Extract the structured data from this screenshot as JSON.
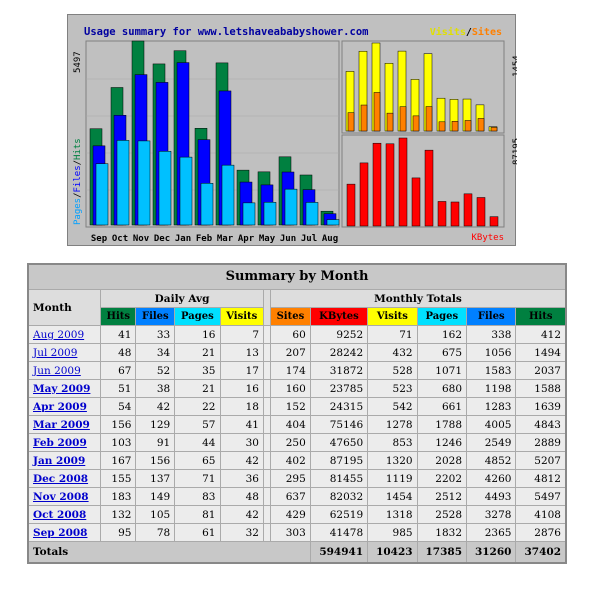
{
  "chart": {
    "title": "Usage summary for www.letshaveababyshower.com",
    "legend_left": [
      "Pages",
      "Files",
      "Hits"
    ],
    "legend_top_right": [
      "Visits",
      "Sites"
    ],
    "legend_bottom_right": "KBytes",
    "left_axis_max": "5497",
    "right_top_max": "1454",
    "right_bottom_max": "87195",
    "colors": {
      "hits": "#008040",
      "files": "#0000ff",
      "pages": "#00c0ff",
      "visits": "#ffff00",
      "sites": "#ff8000",
      "kbytes": "#ff0000",
      "title": "#0000a0"
    }
  },
  "chart_data": {
    "type": "bar",
    "categories": [
      "Sep",
      "Oct",
      "Nov",
      "Dec",
      "Jan",
      "Feb",
      "Mar",
      "Apr",
      "May",
      "Jun",
      "Jul",
      "Aug"
    ],
    "series": [
      {
        "name": "Hits",
        "values": [
          2876,
          4108,
          5497,
          4812,
          5207,
          2889,
          4843,
          1639,
          1588,
          2037,
          1494,
          412
        ]
      },
      {
        "name": "Files",
        "values": [
          2365,
          3278,
          4493,
          4260,
          4852,
          2549,
          4005,
          1283,
          1198,
          1583,
          1056,
          338
        ]
      },
      {
        "name": "Pages",
        "values": [
          1832,
          2528,
          2512,
          2202,
          2028,
          1246,
          1788,
          661,
          680,
          1071,
          675,
          162
        ]
      },
      {
        "name": "Visits",
        "values": [
          985,
          1318,
          1454,
          1119,
          1320,
          853,
          1278,
          542,
          523,
          528,
          432,
          71
        ]
      },
      {
        "name": "Sites",
        "values": [
          303,
          429,
          637,
          295,
          402,
          250,
          404,
          152,
          160,
          174,
          207,
          60
        ]
      },
      {
        "name": "KBytes",
        "values": [
          41478,
          62519,
          82032,
          81455,
          87195,
          47650,
          75146,
          24315,
          23785,
          31872,
          28242,
          9252
        ]
      }
    ]
  },
  "table": {
    "title": "Summary by Month",
    "month_header": "Month",
    "daily_avg_header": "Daily Avg",
    "monthly_totals_header": "Monthly Totals",
    "daily_cols": [
      {
        "label": "Hits",
        "color": "#008040",
        "text": "#000000"
      },
      {
        "label": "Files",
        "color": "#0080ff",
        "text": "#000000"
      },
      {
        "label": "Pages",
        "color": "#00e0ff",
        "text": "#000000"
      },
      {
        "label": "Visits",
        "color": "#ffff00",
        "text": "#000000"
      }
    ],
    "monthly_cols": [
      {
        "label": "Sites",
        "color": "#ff8000",
        "text": "#000000"
      },
      {
        "label": "KBytes",
        "color": "#ff0000",
        "text": "#000000"
      },
      {
        "label": "Visits",
        "color": "#ffff00",
        "text": "#000000"
      },
      {
        "label": "Pages",
        "color": "#00e0ff",
        "text": "#000000"
      },
      {
        "label": "Files",
        "color": "#0080ff",
        "text": "#000000"
      },
      {
        "label": "Hits",
        "color": "#008040",
        "text": "#000000"
      }
    ],
    "rows": [
      {
        "month": "Aug 2009",
        "bold": false,
        "d": [
          "41",
          "33",
          "16",
          "7"
        ],
        "m": [
          "60",
          "9252",
          "71",
          "162",
          "338",
          "412"
        ]
      },
      {
        "month": "Jul 2009",
        "bold": false,
        "d": [
          "48",
          "34",
          "21",
          "13"
        ],
        "m": [
          "207",
          "28242",
          "432",
          "675",
          "1056",
          "1494"
        ]
      },
      {
        "month": "Jun 2009",
        "bold": false,
        "d": [
          "67",
          "52",
          "35",
          "17"
        ],
        "m": [
          "174",
          "31872",
          "528",
          "1071",
          "1583",
          "2037"
        ]
      },
      {
        "month": "May 2009",
        "bold": true,
        "d": [
          "51",
          "38",
          "21",
          "16"
        ],
        "m": [
          "160",
          "23785",
          "523",
          "680",
          "1198",
          "1588"
        ]
      },
      {
        "month": "Apr 2009",
        "bold": true,
        "d": [
          "54",
          "42",
          "22",
          "18"
        ],
        "m": [
          "152",
          "24315",
          "542",
          "661",
          "1283",
          "1639"
        ]
      },
      {
        "month": "Mar 2009",
        "bold": true,
        "d": [
          "156",
          "129",
          "57",
          "41"
        ],
        "m": [
          "404",
          "75146",
          "1278",
          "1788",
          "4005",
          "4843"
        ]
      },
      {
        "month": "Feb 2009",
        "bold": true,
        "d": [
          "103",
          "91",
          "44",
          "30"
        ],
        "m": [
          "250",
          "47650",
          "853",
          "1246",
          "2549",
          "2889"
        ]
      },
      {
        "month": "Jan 2009",
        "bold": true,
        "d": [
          "167",
          "156",
          "65",
          "42"
        ],
        "m": [
          "402",
          "87195",
          "1320",
          "2028",
          "4852",
          "5207"
        ]
      },
      {
        "month": "Dec 2008",
        "bold": true,
        "d": [
          "155",
          "137",
          "71",
          "36"
        ],
        "m": [
          "295",
          "81455",
          "1119",
          "2202",
          "4260",
          "4812"
        ]
      },
      {
        "month": "Nov 2008",
        "bold": true,
        "d": [
          "183",
          "149",
          "83",
          "48"
        ],
        "m": [
          "637",
          "82032",
          "1454",
          "2512",
          "4493",
          "5497"
        ]
      },
      {
        "month": "Oct 2008",
        "bold": true,
        "d": [
          "132",
          "105",
          "81",
          "42"
        ],
        "m": [
          "429",
          "62519",
          "1318",
          "2528",
          "3278",
          "4108"
        ]
      },
      {
        "month": "Sep 2008",
        "bold": true,
        "d": [
          "95",
          "78",
          "61",
          "32"
        ],
        "m": [
          "303",
          "41478",
          "985",
          "1832",
          "2365",
          "2876"
        ]
      }
    ],
    "totals": {
      "label": "Totals",
      "values": [
        "594941",
        "10423",
        "17385",
        "31260",
        "37402"
      ]
    }
  }
}
